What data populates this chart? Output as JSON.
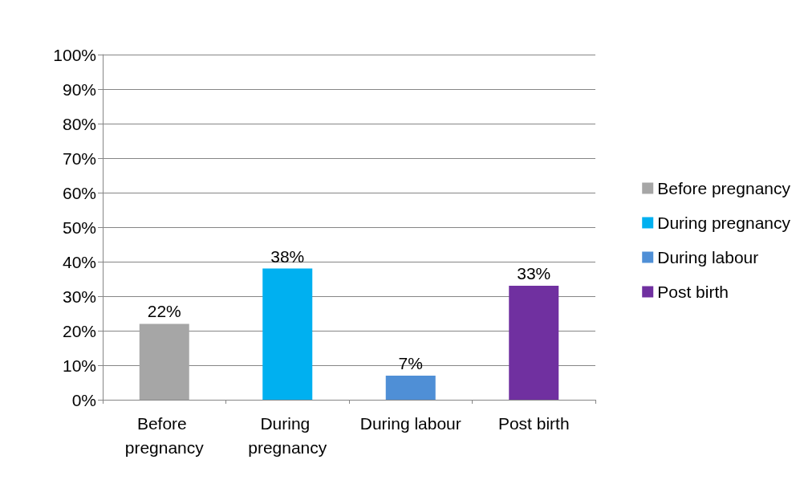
{
  "chart_data": {
    "type": "bar",
    "categories": [
      "Before pregnancy",
      "During pregnancy",
      "During labour",
      "Post birth"
    ],
    "series": [
      {
        "name": "Before pregnancy",
        "color": "#a6a6a6",
        "values": [
          22,
          null,
          null,
          null
        ],
        "value_labels": [
          "22%",
          null,
          null,
          null
        ]
      },
      {
        "name": "During pregnancy",
        "color": "#00b0f0",
        "values": [
          null,
          38,
          null,
          null
        ],
        "value_labels": [
          null,
          "38%",
          null,
          null
        ]
      },
      {
        "name": "During labour",
        "color": "#4f8fd6",
        "values": [
          null,
          null,
          7,
          null
        ],
        "value_labels": [
          null,
          null,
          "7%",
          null
        ]
      },
      {
        "name": "Post birth",
        "color": "#7030a0",
        "values": [
          null,
          null,
          null,
          33
        ],
        "value_labels": [
          null,
          null,
          null,
          "33%"
        ]
      }
    ],
    "ylim": [
      0,
      100
    ],
    "yticks": [
      {
        "value": 0,
        "label": "0%"
      },
      {
        "value": 10,
        "label": "10%"
      },
      {
        "value": 20,
        "label": "20%"
      },
      {
        "value": 30,
        "label": "30%"
      },
      {
        "value": 40,
        "label": "40%"
      },
      {
        "value": 50,
        "label": "50%"
      },
      {
        "value": 60,
        "label": "60%"
      },
      {
        "value": 70,
        "label": "70%"
      },
      {
        "value": 80,
        "label": "80%"
      },
      {
        "value": 90,
        "label": "90%"
      },
      {
        "value": 100,
        "label": "100%"
      }
    ],
    "grid": "y",
    "legend": "right"
  }
}
